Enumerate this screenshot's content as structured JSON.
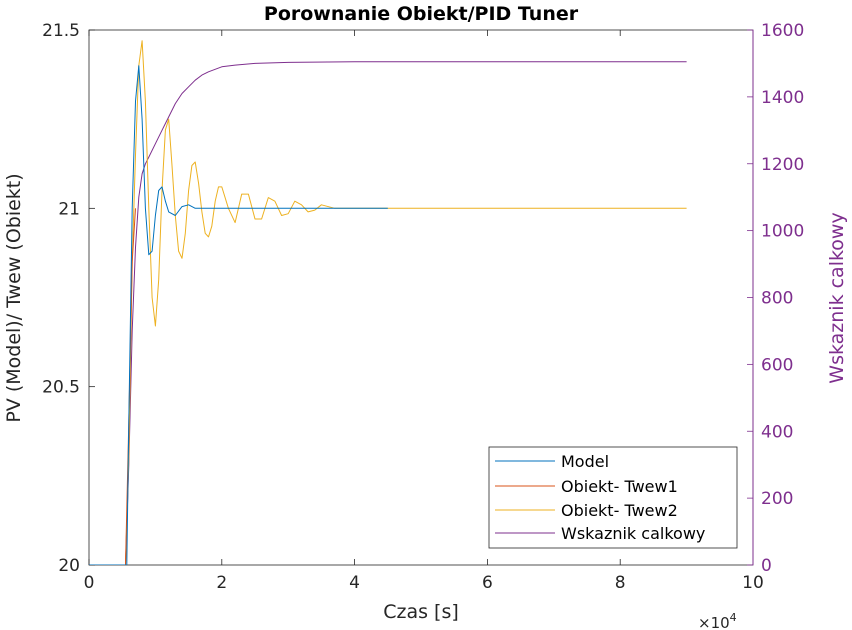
{
  "chart_data": {
    "type": "line",
    "title": "Porownanie Obiekt/PID Tuner",
    "xlabel": "Czas [s]",
    "x_exponent": "×10",
    "x_exponent_power": "4",
    "ylabel_left": "PV (Model)/ Twew (Obiekt)",
    "ylabel_right": "Wskaznik calkowy",
    "xlim": [
      0,
      100000
    ],
    "ylim_left": [
      20,
      21.5
    ],
    "ylim_right": [
      0,
      1600
    ],
    "x_ticks": [
      0,
      20000,
      40000,
      60000,
      80000,
      100000
    ],
    "x_tick_labels": [
      "0",
      "2",
      "4",
      "6",
      "8",
      "10"
    ],
    "y_left_ticks": [
      20,
      20.5,
      21,
      21.5
    ],
    "y_left_tick_labels": [
      "20",
      "20.5",
      "21",
      "21.5"
    ],
    "y_right_ticks": [
      0,
      200,
      400,
      600,
      800,
      1000,
      1200,
      1400,
      1600
    ],
    "y_right_tick_labels": [
      "0",
      "200",
      "400",
      "600",
      "800",
      "1000",
      "1200",
      "1400",
      "1600"
    ],
    "legend_position": "bottom-right",
    "grid": false,
    "right_axis_color": "#7E2F8E",
    "series": [
      {
        "name": "Model",
        "axis": "left",
        "color": "#0072BD",
        "x": [
          0,
          5000,
          5700,
          6000,
          6500,
          7000,
          7500,
          8000,
          8500,
          9000,
          9500,
          10000,
          10500,
          11000,
          11500,
          12000,
          13000,
          14000,
          15000,
          16000,
          17000,
          20000,
          25000,
          30000,
          35000,
          40000,
          45000
        ],
        "y": [
          20,
          20,
          20,
          20.4,
          21.0,
          21.3,
          21.4,
          21.25,
          21.0,
          20.87,
          20.88,
          20.98,
          21.05,
          21.06,
          21.02,
          20.99,
          20.98,
          21.005,
          21.01,
          21.0,
          21.0,
          21.0,
          21.0,
          21.0,
          21.0,
          21.0,
          21.0
        ]
      },
      {
        "name": "Obiekt- Twew1",
        "axis": "left",
        "color": "#D95319",
        "x": [
          0,
          5000,
          5500,
          6000,
          6500,
          7000
        ],
        "y": [
          20,
          20,
          20,
          20.4,
          20.85,
          21.0
        ]
      },
      {
        "name": "Obiekt- Twew2",
        "axis": "left",
        "color": "#EDB120",
        "x": [
          0,
          5000,
          5500,
          6000,
          6500,
          7000,
          7500,
          8000,
          8500,
          9000,
          9500,
          10000,
          10500,
          11000,
          11500,
          12000,
          12500,
          13000,
          13500,
          14000,
          14500,
          15000,
          15500,
          16000,
          16500,
          17000,
          17500,
          18000,
          18500,
          19000,
          19500,
          20000,
          21000,
          22000,
          23000,
          24000,
          25000,
          26000,
          27000,
          28000,
          29000,
          30000,
          31000,
          32000,
          33000,
          34000,
          35000,
          37000,
          40000,
          50000,
          60000,
          70000,
          80000,
          90000
        ],
        "y": [
          20,
          20,
          20,
          20.3,
          20.85,
          21.15,
          21.4,
          21.47,
          21.3,
          21.0,
          20.75,
          20.67,
          20.8,
          21.05,
          21.22,
          21.25,
          21.12,
          20.98,
          20.88,
          20.86,
          20.93,
          21.05,
          21.12,
          21.13,
          21.07,
          20.99,
          20.93,
          20.92,
          20.95,
          21.02,
          21.06,
          21.06,
          21.0,
          20.96,
          21.04,
          21.04,
          20.97,
          20.97,
          21.03,
          21.02,
          20.98,
          20.985,
          21.02,
          21.01,
          20.99,
          20.995,
          21.01,
          21.0,
          21.0,
          21.0,
          21.0,
          21.0,
          21.0,
          21.0
        ]
      },
      {
        "name": "Wskaznik calkowy",
        "axis": "right",
        "color": "#7E2F8E",
        "x": [
          0,
          5000,
          5500,
          6000,
          6500,
          7000,
          7500,
          8000,
          8500,
          9000,
          10000,
          11000,
          12000,
          13000,
          14000,
          15000,
          16000,
          17000,
          18000,
          20000,
          22000,
          25000,
          30000,
          40000,
          50000,
          60000,
          70000,
          80000,
          90000
        ],
        "y": [
          0,
          0,
          0,
          300,
          700,
          950,
          1100,
          1170,
          1200,
          1220,
          1260,
          1300,
          1340,
          1380,
          1410,
          1430,
          1450,
          1465,
          1475,
          1490,
          1495,
          1500,
          1503,
          1505,
          1505,
          1505,
          1505,
          1505,
          1505
        ]
      }
    ]
  }
}
